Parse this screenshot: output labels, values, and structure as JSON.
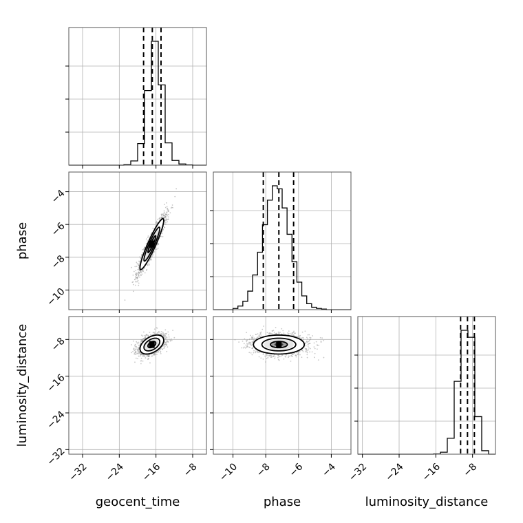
{
  "chart_data": {
    "type": "corner",
    "parameters": [
      "geocent_time",
      "phase",
      "luminosity_distance"
    ],
    "colors": {
      "hist": "#000000",
      "grid": "#b0b0b0",
      "frame": "#555555",
      "scatter": "#9a9a9a"
    },
    "axes": {
      "geocent_time": {
        "lim": [
          -35,
          -5
        ],
        "ticks": [
          -32,
          -24,
          -16,
          -8
        ],
        "tick_labels": [
          "−32",
          "−24",
          "−16",
          "−8"
        ]
      },
      "phase": {
        "lim": [
          -11.2,
          -2.8
        ],
        "ticks": [
          -10,
          -8,
          -6,
          -4
        ],
        "tick_labels": [
          "−10",
          "−8",
          "−6",
          "−4"
        ]
      },
      "luminosity_distance": {
        "lim": [
          -33,
          -3
        ],
        "ticks": [
          -32,
          -24,
          -16,
          -8
        ],
        "tick_labels": [
          "−32",
          "−24",
          "−16",
          "−8"
        ]
      }
    },
    "marginals": [
      {
        "parameter": "geocent_time",
        "bin_edges": [
          -23.0,
          -21.5,
          -20.0,
          -18.5,
          -17.0,
          -15.5,
          -14.0,
          -12.5,
          -11.0,
          -9.5,
          -8.0
        ],
        "counts": [
          2,
          18,
          92,
          318,
          528,
          342,
          95,
          20,
          5,
          1
        ],
        "quantiles": [
          -18.7,
          -16.8,
          -14.9
        ]
      },
      {
        "parameter": "phase",
        "bin_edges": [
          -10.0,
          -9.7,
          -9.4,
          -9.1,
          -8.8,
          -8.5,
          -8.2,
          -7.9,
          -7.6,
          -7.3,
          -7.0,
          -6.7,
          -6.4,
          -6.1,
          -5.8,
          -5.5,
          -5.2,
          -4.9,
          -4.6,
          -4.3
        ],
        "counts": [
          2,
          6,
          14,
          31,
          58,
          96,
          142,
          183,
          207,
          202,
          170,
          126,
          80,
          46,
          23,
          10,
          4,
          2,
          1
        ],
        "quantiles": [
          -8.15,
          -7.2,
          -6.3
        ]
      },
      {
        "parameter": "luminosity_distance",
        "bin_edges": [
          -16.5,
          -15.0,
          -13.5,
          -12.0,
          -10.5,
          -9.0,
          -7.5,
          -6.0,
          -4.5
        ],
        "counts": [
          1,
          8,
          64,
          293,
          498,
          470,
          151,
          14
        ],
        "quantiles": [
          -10.6,
          -9.1,
          -7.6
        ]
      }
    ],
    "joints": [
      {
        "x": "geocent_time",
        "y": "phase",
        "mean": [
          -16.9,
          -7.2
        ],
        "sd": [
          1.5,
          0.9
        ],
        "rho": 0.93
      },
      {
        "x": "geocent_time",
        "y": "luminosity_distance",
        "mean": [
          -16.9,
          -9.1
        ],
        "sd": [
          1.5,
          1.2
        ],
        "rho": 0.45
      },
      {
        "x": "phase",
        "y": "luminosity_distance",
        "mean": [
          -7.2,
          -9.1
        ],
        "sd": [
          0.9,
          1.2
        ],
        "rho": 0.0
      }
    ],
    "contour_levels_sigma": [
      0.5,
      1.0,
      1.5
    ],
    "grid": true,
    "quantile_line_style": "dashed"
  }
}
